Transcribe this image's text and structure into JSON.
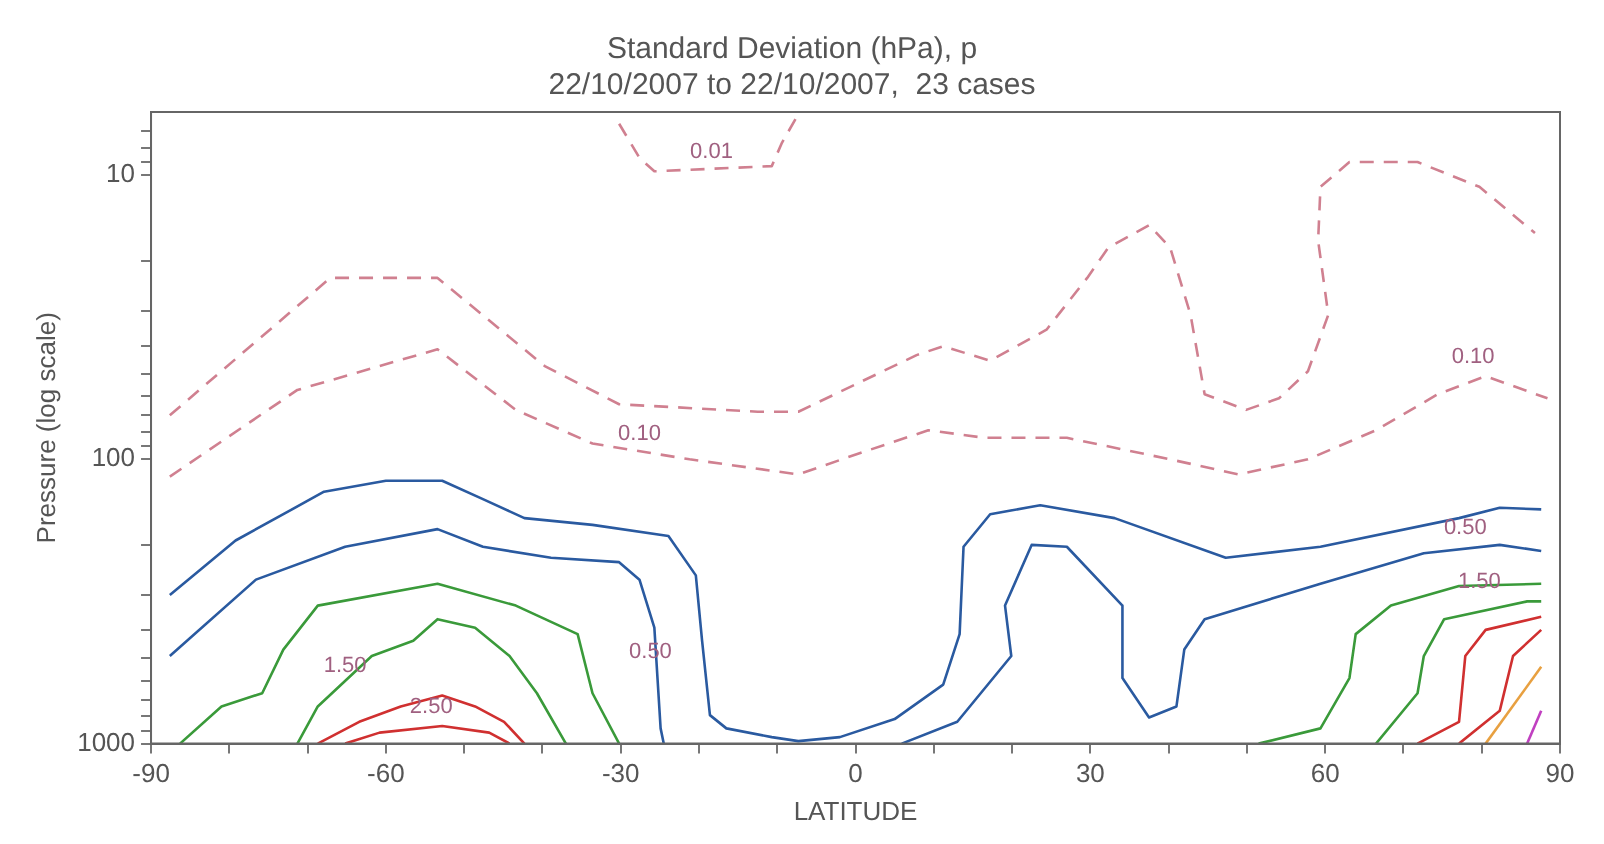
{
  "chart_data": {
    "type": "line",
    "title": "Standard Deviation (hPa), p",
    "subtitle": "22/10/2007 to 22/10/2007,  23 cases",
    "xlabel": "LATITUDE",
    "ylabel": "Pressure (log scale)",
    "log": "y",
    "grid": false,
    "legend": false,
    "marker": "none",
    "line_style": "solid",
    "xlim": [
      -90,
      90
    ],
    "xticks": [
      -90,
      {
        "value": -80,
        "label": null
      },
      {
        "value": -70,
        "label": null
      },
      -60,
      {
        "value": -50,
        "label": null
      },
      {
        "value": -40,
        "label": null
      },
      -30,
      {
        "value": -20,
        "label": null
      },
      {
        "value": -10,
        "label": null
      },
      0,
      {
        "value": 10,
        "label": null
      },
      {
        "value": 20,
        "label": null
      },
      30,
      {
        "value": 40,
        "label": null
      },
      {
        "value": 50,
        "label": null
      },
      60,
      {
        "value": 70,
        "label": null
      },
      {
        "value": 80,
        "label": null
      },
      90
    ],
    "ylim": [
      1000,
      6
    ],
    "yticks": [
      {
        "value": 7,
        "label": null
      },
      {
        "value": 8,
        "label": null
      },
      {
        "value": 9,
        "label": null
      },
      10,
      {
        "value": 20,
        "label": null
      },
      {
        "value": 30,
        "label": null
      },
      {
        "value": 40,
        "label": null
      },
      {
        "value": 50,
        "label": null
      },
      {
        "value": 60,
        "label": null
      },
      {
        "value": 70,
        "label": null
      },
      {
        "value": 80,
        "label": null
      },
      {
        "value": 90,
        "label": null
      },
      100,
      {
        "value": 200,
        "label": null
      },
      {
        "value": 300,
        "label": null
      },
      {
        "value": 400,
        "label": null
      },
      {
        "value": 500,
        "label": null
      },
      {
        "value": 600,
        "label": null
      },
      {
        "value": 700,
        "label": null
      },
      {
        "value": 800,
        "label": null
      },
      {
        "value": 900,
        "label": null
      },
      1000
    ],
    "series": [
      {
        "color": "#d08090",
        "line_style": "dashed",
        "x": [
          -30.2,
          -27.6,
          -25.7,
          -10.7,
          -9.4,
          -7.3
        ],
        "values": [
          6.6,
          8.7,
          9.7,
          9.3,
          7.7,
          6.1
        ]
      },
      {
        "color": "#d08090",
        "line_style": "dashed",
        "x": [
          -87.6,
          -67.1,
          -53.4,
          -39.7,
          -30.2,
          -12.5,
          -7.3,
          7.8,
          11.2,
          17.2,
          24.4,
          29.6,
          32.3,
          37.5,
          40.2,
          42.8,
          44.6,
          49.9,
          54.1,
          57.8,
          60.4,
          59.1,
          59.4,
          63.1,
          71.8,
          79.7,
          86.8
        ],
        "values": [
          70,
          23,
          23,
          47,
          64,
          68,
          68,
          43,
          40,
          45,
          35,
          23,
          18,
          15,
          18,
          31,
          59,
          67,
          61,
          49,
          31,
          17,
          11,
          9,
          9,
          11,
          16
        ]
      },
      {
        "color": "#d08090",
        "line_style": "dashed",
        "x": [
          -87.6,
          -71.3,
          -53.4,
          -43.4,
          -33.6,
          -21.2,
          -7.3,
          0.6,
          9.3,
          16.5,
          27.0,
          40.2,
          48.9,
          57.8,
          66.5,
          74.4,
          80.5,
          88.4
        ],
        "values": [
          115,
          57,
          41,
          67,
          88,
          100,
          113,
          95,
          79,
          84,
          84,
          100,
          113,
          100,
          79,
          59,
          51,
          61
        ]
      },
      {
        "color": "#2a5aa0",
        "x": [
          -87.6,
          -79.2,
          -67.9,
          -60.0,
          -52.8,
          -47.6,
          -42.3,
          -33.6,
          -23.9,
          -20.4,
          -19.6,
          -18.6,
          -16.5,
          -10.7,
          -7.3,
          -2.0,
          5.0,
          11.2,
          13.3,
          13.8,
          17.2,
          23.6,
          33.1,
          47.3,
          59.4,
          77.1,
          82.3,
          87.6
        ],
        "values": [
          300,
          193,
          130,
          119,
          119,
          138,
          161,
          170,
          186,
          256,
          435,
          794,
          884,
          949,
          980,
          949,
          820,
          620,
          412,
          203,
          156,
          145,
          161,
          222,
          203,
          161,
          148,
          150
        ]
      },
      {
        "color": "#2a5aa0",
        "x": [
          -87.6,
          -76.6,
          -65.2,
          -53.4,
          -47.6,
          -38.9,
          -30.2,
          -27.6,
          -25.7,
          -24.9,
          -24.5
        ],
        "values": [
          492,
          265,
          203,
          176,
          203,
          222,
          230,
          265,
          391,
          884,
          1000
        ]
      },
      {
        "color": "#2a5aa0",
        "x": [
          5.9,
          13.0,
          19.9,
          19.1,
          22.5,
          27.0,
          34.1,
          34.1,
          37.5,
          41.0,
          42.0,
          44.6,
          59.4,
          72.6,
          82.3,
          87.6
        ],
        "values": [
          1000,
          838,
          492,
          327,
          200,
          203,
          327,
          588,
          809,
          740,
          467,
          365,
          274,
          214,
          200,
          210
        ]
      },
      {
        "color": "#3a9a3a",
        "x": [
          -86.3,
          -81.0,
          -75.8,
          -73.1,
          -68.7,
          -53.4,
          -43.4,
          -35.5,
          -33.6,
          -30.2
        ],
        "values": [
          1000,
          740,
          665,
          467,
          327,
          274,
          327,
          412,
          665,
          1000
        ]
      },
      {
        "color": "#3a9a3a",
        "x": [
          -71.3,
          -68.7,
          -61.8,
          -56.5,
          -53.4,
          -48.6,
          -44.2,
          -40.7,
          -37.0
        ],
        "values": [
          1000,
          740,
          492,
          435,
          365,
          391,
          492,
          665,
          1000
        ]
      },
      {
        "color": "#d03030",
        "x": [
          -68.7,
          -63.4,
          -58.1,
          -52.8,
          -48.6,
          -44.9,
          -42.3
        ],
        "values": [
          1000,
          838,
          740,
          677,
          740,
          838,
          1000
        ]
      },
      {
        "color": "#d03030",
        "x": [
          -65.2,
          -60.8,
          -52.8,
          -46.8,
          -44.2
        ],
        "values": [
          1000,
          915,
          867,
          915,
          1000
        ]
      },
      {
        "color": "#3a9a3a",
        "x": [
          51.5,
          59.4,
          63.1,
          63.9,
          68.4,
          77.1,
          87.6
        ],
        "values": [
          1000,
          884,
          588,
          412,
          327,
          279,
          274
        ]
      },
      {
        "color": "#3a9a3a",
        "x": [
          66.5,
          71.8,
          72.6,
          75.2,
          85.8,
          87.6
        ],
        "values": [
          1000,
          665,
          492,
          365,
          316,
          316
        ]
      },
      {
        "color": "#d03030",
        "x": [
          71.8,
          77.1,
          77.9,
          80.5,
          87.6
        ],
        "values": [
          1000,
          838,
          492,
          398,
          358
        ]
      },
      {
        "color": "#d03030",
        "x": [
          77.1,
          82.3,
          84.0,
          87.6
        ],
        "values": [
          1000,
          767,
          492,
          398
        ]
      },
      {
        "color": "#e8a040",
        "x": [
          80.5,
          87.6
        ],
        "values": [
          1000,
          537
        ]
      },
      {
        "color": "#c040c0",
        "x": [
          85.8,
          87.6
        ],
        "values": [
          1000,
          767
        ]
      }
    ],
    "annotations": [
      {
        "text": "0.01",
        "x": -18.4,
        "y": 9.7
      },
      {
        "text": "0.10",
        "x": -27.6,
        "y": 95
      },
      {
        "text": "0.10",
        "x": 78.9,
        "y": 51
      },
      {
        "text": "0.50",
        "x": -26.2,
        "y": 557
      },
      {
        "text": "0.50",
        "x": 77.9,
        "y": 203
      },
      {
        "text": "1.50",
        "x": -65.2,
        "y": 620
      },
      {
        "text": "1.50",
        "x": 79.7,
        "y": 316
      },
      {
        "text": "2.50",
        "x": -54.2,
        "y": 867
      }
    ]
  }
}
